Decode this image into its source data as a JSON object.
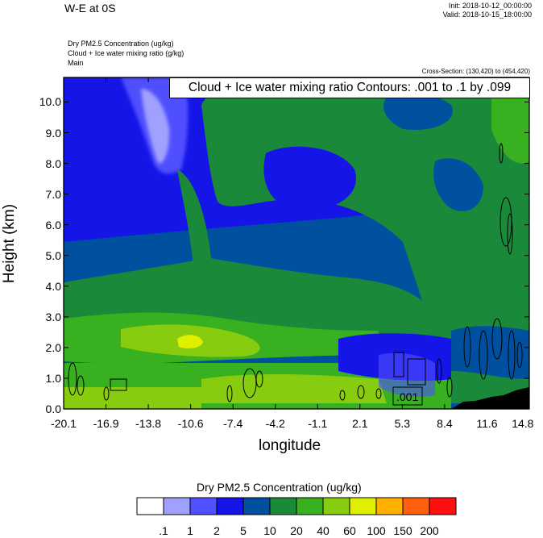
{
  "header": {
    "title": "W-E at 0S",
    "init": "Init: 2018-10-12_00:00:00",
    "valid": "Valid: 2018-10-15_18:00:00"
  },
  "left_titles": [
    "Dry PM2.5 Concentration   (ug/kg)",
    "Cloud + Ice water mixing ratio   (g/kg)",
    "Main"
  ],
  "cross_section": "Cross-Section: (130,420) to (454,420)",
  "contour_info": "Cloud + Ice water mixing ratio Contours: .001 to .1 by .099",
  "contour_label": ".001",
  "colorbar": {
    "title": "Dry PM2.5 Concentration  (ug/kg)",
    "labels": [
      ".1",
      "1",
      "2",
      "5",
      "10",
      "20",
      "40",
      "60",
      "100",
      "150",
      "200"
    ],
    "colors": [
      "#ffffff",
      "#a0a0ff",
      "#5050ff",
      "#1515e8",
      "#0050a0",
      "#1a8a3a",
      "#38b020",
      "#88cc10",
      "#e0ee00",
      "#ffb000",
      "#ff6010",
      "#ff1010"
    ]
  },
  "chart_data": {
    "type": "heatmap",
    "xlabel": "longitude",
    "ylabel": "Height (km)",
    "xlim": [
      -20.1,
      14.8
    ],
    "ylim": [
      0,
      10.8
    ],
    "x_ticks": [
      "-20.1",
      "-16.9",
      "-13.8",
      "-10.6",
      "-7.4",
      "-4.2",
      "-1.1",
      "2.1",
      "5.3",
      "8.4",
      "11.6",
      "14.8"
    ],
    "y_ticks": [
      "0.0",
      "1.0",
      "2.0",
      "3.0",
      "4.0",
      "5.0",
      "6.0",
      "7.0",
      "8.0",
      "9.0",
      "10.0"
    ],
    "y_tick_values": [
      0,
      1,
      2,
      3,
      4,
      5,
      6,
      7,
      8,
      9,
      10
    ],
    "fields": [
      "Dry PM2.5 Concentration (ug/kg)",
      "Cloud + Ice water mixing ratio (g/kg)"
    ]
  }
}
